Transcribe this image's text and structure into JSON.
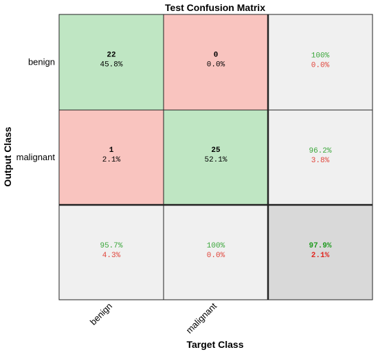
{
  "chart_data": {
    "type": "heatmap",
    "title": "Test Confusion Matrix",
    "xlabel": "Target Class",
    "ylabel": "Output Class",
    "classes": [
      "benign",
      "malignant"
    ],
    "cells": [
      [
        {
          "count": "22",
          "percent": "45.8%"
        },
        {
          "count": "0",
          "percent": "0.0%"
        }
      ],
      [
        {
          "count": "1",
          "percent": "2.1%"
        },
        {
          "count": "25",
          "percent": "52.1%"
        }
      ]
    ],
    "row_summary": [
      {
        "correct": "100%",
        "incorrect": "0.0%"
      },
      {
        "correct": "96.2%",
        "incorrect": "3.8%"
      }
    ],
    "col_summary": [
      {
        "correct": "95.7%",
        "incorrect": "4.3%"
      },
      {
        "correct": "100%",
        "incorrect": "0.0%"
      }
    ],
    "overall": {
      "correct": "97.9%",
      "incorrect": "2.1%"
    },
    "colors": {
      "correct_cell": "#bfe6c3",
      "incorrect_cell": "#f9c4bf",
      "summary_cell": "#f0f0f0",
      "overall_cell": "#d9d9d9",
      "correct_text": "#3aa63a",
      "incorrect_text": "#e0443a",
      "overall_correct_text": "#1f9a1f",
      "overall_incorrect_text": "#e0261f"
    }
  }
}
